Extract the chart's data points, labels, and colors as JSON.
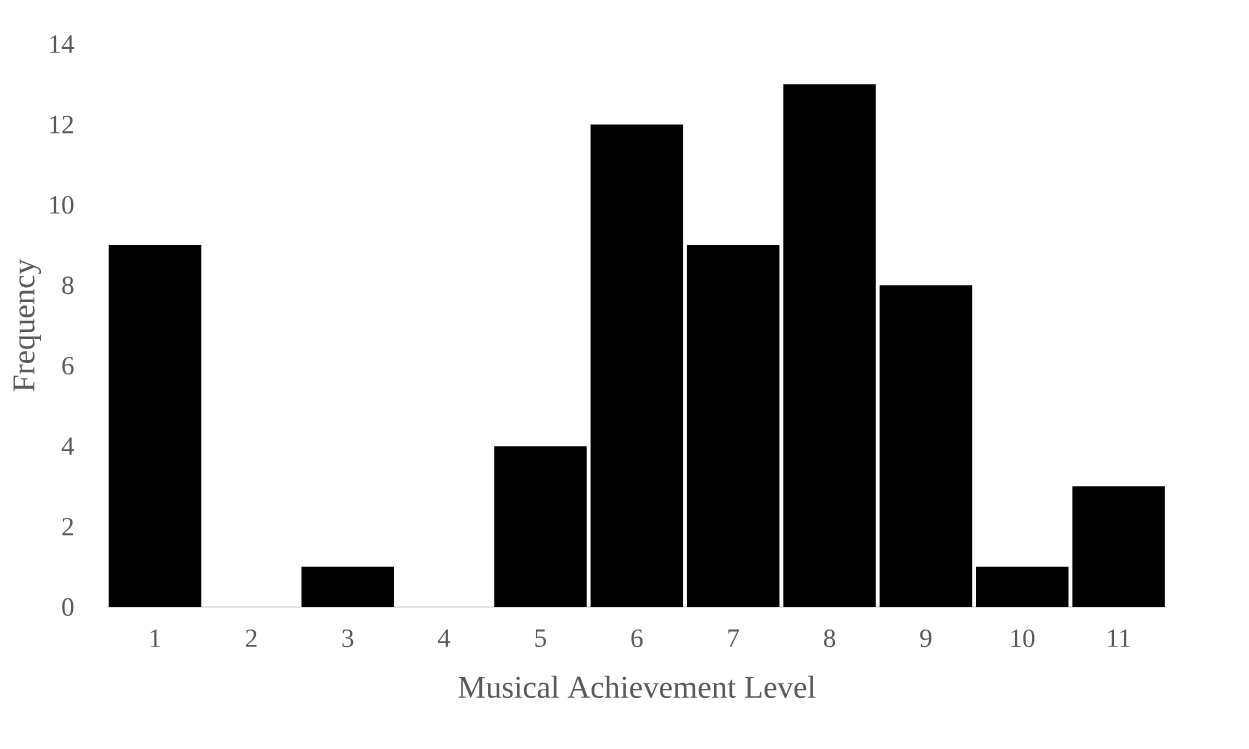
{
  "chart_data": {
    "type": "bar",
    "xlabel": "Musical Achievement Level",
    "ylabel": "Frequency",
    "categories": [
      "1",
      "2",
      "3",
      "4",
      "5",
      "6",
      "7",
      "8",
      "9",
      "10",
      "11"
    ],
    "values": [
      9,
      0,
      1,
      0,
      4,
      12,
      9,
      13,
      8,
      1,
      3
    ],
    "color": "#000000",
    "ylim": [
      0,
      14
    ],
    "yticks": [
      0,
      2,
      4,
      6,
      8,
      10,
      12,
      14
    ]
  }
}
